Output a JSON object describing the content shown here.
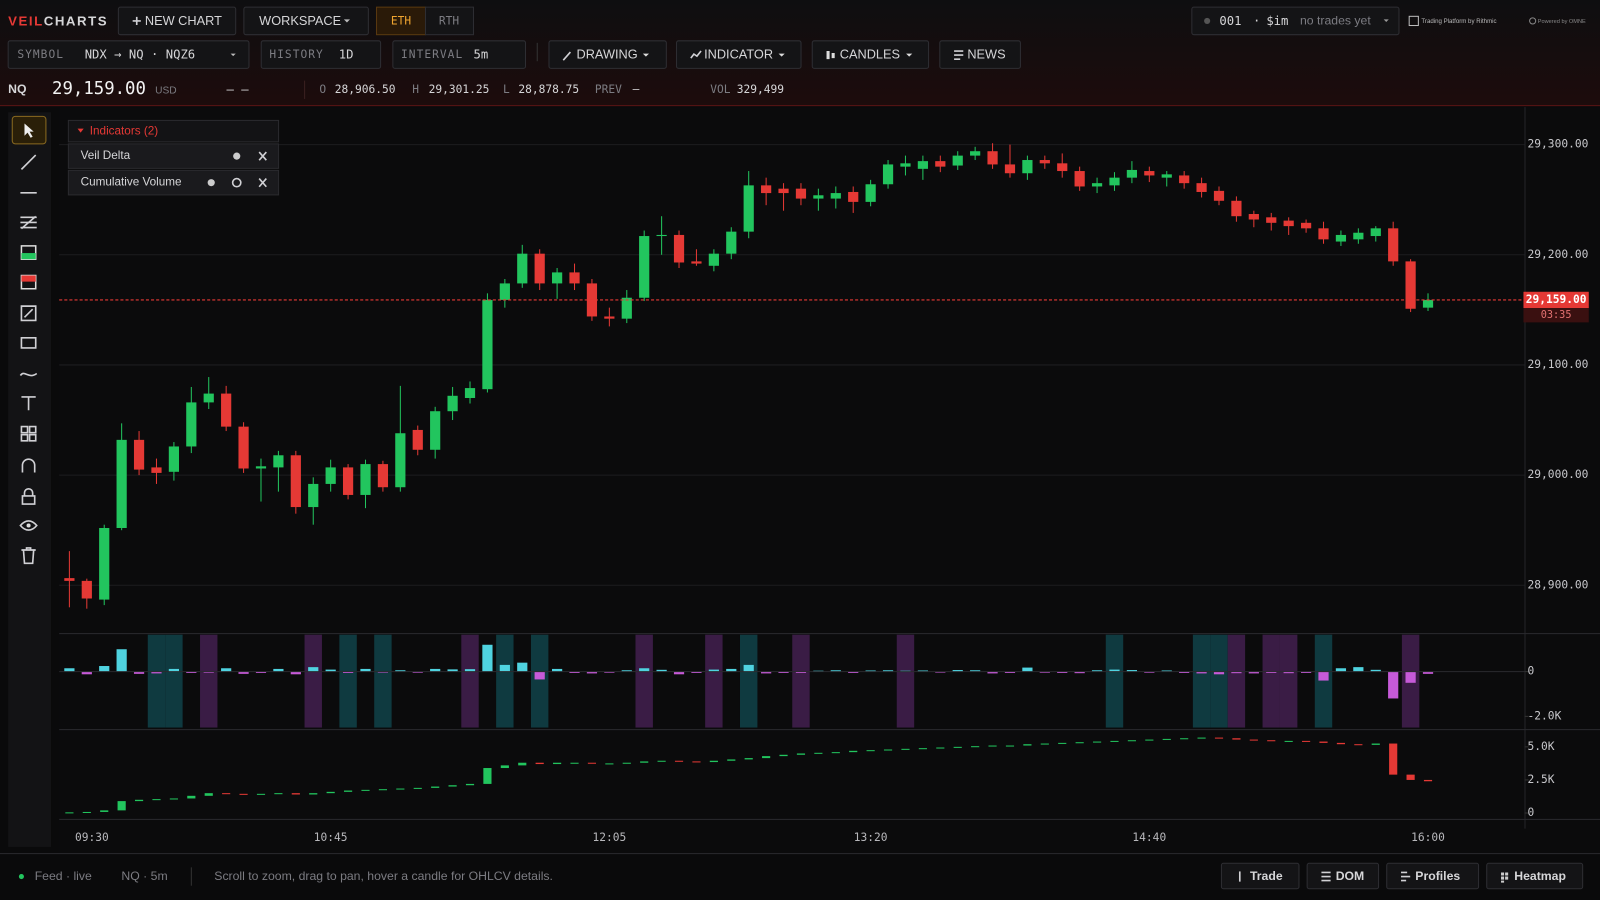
{
  "header": {
    "brand_accent": "VEIL",
    "brand": "CHARTS",
    "new_chart": "NEW CHART",
    "workspace": "WORKSPACE",
    "sessions": [
      "ETH",
      "RTH"
    ],
    "account": {
      "id": "001",
      "separator": "·",
      "mode": "$im",
      "status": "no trades yet"
    },
    "partner": "Trading Platform by Rithmic",
    "powered": "Powered by OMNE"
  },
  "toolbar": {
    "symbol_label": "SYMBOL",
    "symbol": "NDX → NQ · NQZ6",
    "history_label": "HISTORY",
    "history": "1D",
    "interval_label": "INTERVAL",
    "interval": "5m",
    "buttons": [
      "DRAWING",
      "INDICATOR",
      "CANDLES",
      "NEWS"
    ]
  },
  "quote": {
    "symbol": "NQ",
    "currency": "USD",
    "change": "– –",
    "open_label": "O",
    "open": "28,906.50",
    "high_label": "H",
    "high": "29,301.25",
    "low_label": "L",
    "low": "28,878.75",
    "prev_label": "PREV",
    "prev": "—",
    "vol_label": "VOL",
    "vol": "329,499"
  },
  "indicators_panel": {
    "title": "Indicators (2)"
  },
  "footer": {
    "feed": "Feed · live",
    "stream": "NQ · 5m",
    "hint": "Scroll to zoom, drag to pan, hover a candle for OHLCV details.",
    "buttons": [
      "Trade",
      "DOM",
      "Profiles",
      "Heatmap"
    ]
  },
  "chart_data": [
    {
      "type": "candlestick",
      "grid": true,
      "up_color": "#22c55e",
      "down_color": "#e53935",
      "categories": [
        "09:30",
        null,
        null,
        null,
        null,
        null,
        null,
        null,
        null,
        null,
        null,
        null,
        null,
        null,
        null,
        "10:45",
        null,
        null,
        null,
        null,
        null,
        null,
        null,
        null,
        null,
        null,
        null,
        null,
        null,
        null,
        null,
        "12:05",
        null,
        null,
        null,
        null,
        null,
        null,
        null,
        null,
        null,
        null,
        null,
        null,
        null,
        null,
        "13:20",
        null,
        null,
        null,
        null,
        null,
        null,
        null,
        null,
        null,
        null,
        null,
        null,
        null,
        null,
        null,
        "14:40",
        null,
        null,
        null,
        null,
        null,
        null,
        null,
        null,
        null,
        null,
        null,
        null,
        null,
        null,
        null,
        "16:00"
      ],
      "open": [
        28906.5,
        28904,
        28887,
        28952,
        29032,
        29007,
        29003,
        29026,
        29066,
        29074,
        29044,
        29006,
        29007,
        29018,
        28971,
        28992,
        29007,
        28982,
        29010,
        28989,
        29041,
        29023,
        29058,
        29070,
        29078,
        29159,
        29174,
        29201,
        29174,
        29184,
        29174,
        29144,
        29142,
        29161,
        29217,
        29218,
        29194,
        29190,
        29201,
        29221,
        29263,
        29260,
        29260,
        29251,
        29251,
        29257,
        29248,
        29264,
        29280,
        29278,
        29285,
        29281,
        29290,
        29294,
        29282,
        29274,
        29286,
        29283,
        29276,
        29262,
        29263,
        29270,
        29276,
        29270,
        29272,
        29265,
        29258,
        29249,
        29237,
        29234,
        29231,
        29229,
        29224,
        29212,
        29214,
        29217,
        29224,
        29194,
        29152
      ],
      "high": [
        28931,
        28906,
        28955,
        29047,
        29040,
        29015,
        29030,
        29080,
        29089,
        29081,
        29048,
        29015,
        29022,
        29022,
        28998,
        29014,
        29010,
        29014,
        29013,
        29081,
        29045,
        29062,
        29080,
        29085,
        29165,
        29178,
        29209,
        29205,
        29188,
        29192,
        29178,
        29152,
        29168,
        29222,
        29235,
        29222,
        29205,
        29205,
        29225,
        29276,
        29270,
        29265,
        29265,
        29260,
        29262,
        29262,
        29268,
        29286,
        29290,
        29290,
        29290,
        29294,
        29298,
        29301.25,
        29300,
        29290,
        29290,
        29292,
        29280,
        29270,
        29275,
        29285,
        29280,
        29276,
        29276,
        29270,
        29262,
        29253,
        29240,
        29238,
        29234,
        29232,
        29230,
        29222,
        29224,
        29226,
        29230,
        29196,
        29165
      ],
      "low": [
        28880,
        28878.75,
        28882,
        28950,
        29000,
        28992,
        28995,
        29020,
        29060,
        29040,
        29002,
        28976,
        28985,
        28965,
        28955,
        28985,
        28978,
        28970,
        28985,
        28985,
        29018,
        29015,
        29050,
        29065,
        29075,
        29152,
        29170,
        29168,
        29160,
        29168,
        29140,
        29135,
        29138,
        29158,
        29200,
        29188,
        29190,
        29185,
        29196,
        29215,
        29245,
        29240,
        29245,
        29240,
        29242,
        29238,
        29244,
        29260,
        29272,
        29268,
        29275,
        29277,
        29286,
        29278,
        29270,
        29268,
        29278,
        29270,
        29258,
        29256,
        29258,
        29265,
        29266,
        29262,
        29260,
        29252,
        29245,
        29230,
        29225,
        29222,
        29218,
        29220,
        29210,
        29208,
        29210,
        29212,
        29190,
        29148,
        29149
      ],
      "close": [
        28904,
        28888,
        28952,
        29032,
        29005,
        29002,
        29026,
        29066,
        29074,
        29044,
        29006,
        29008,
        29018,
        28971,
        28992,
        29007,
        28982,
        29010,
        28989,
        29038,
        29023,
        29058,
        29072,
        29079,
        29159,
        29174,
        29201,
        29174,
        29184,
        29174,
        29144,
        29142,
        29161,
        29217,
        29218,
        29193,
        29192,
        29201,
        29221,
        29263,
        29256,
        29256,
        29251,
        29254,
        29256,
        29248,
        29264,
        29282,
        29283,
        29285,
        29280,
        29290,
        29294,
        29282,
        29274,
        29286,
        29283,
        29276,
        29262,
        29265,
        29270,
        29277,
        29272,
        29273,
        29265,
        29257,
        29249,
        29235,
        29232,
        29229,
        29226,
        29224,
        29214,
        29218,
        29220,
        29224,
        29194,
        29151,
        29159
      ],
      "ylim": [
        28857,
        29334
      ],
      "yticks": [
        {
          "value": 28900,
          "label": "28,900.00"
        },
        {
          "value": 29000,
          "label": "29,000.00"
        },
        {
          "value": 29100,
          "label": "29,100.00"
        },
        {
          "value": 29200,
          "label": "29,200.00"
        },
        {
          "value": 29300,
          "label": "29,300.00"
        }
      ],
      "last": {
        "value": 29159,
        "label": "29,159.00"
      },
      "countdown": "03:35",
      "last_color": "#e53935"
    },
    {
      "type": "bar",
      "title": "Veil Delta",
      "up_color": "#4fd3e0",
      "down_color": "#c65ad8",
      "values": [
        150,
        -120,
        250,
        1000,
        -100,
        -80,
        120,
        -60,
        -50,
        150,
        -100,
        -60,
        120,
        -120,
        200,
        90,
        -60,
        120,
        -40,
        60,
        -50,
        120,
        100,
        110,
        1200,
        300,
        400,
        -350,
        120,
        -60,
        -80,
        -50,
        60,
        150,
        80,
        -120,
        -60,
        90,
        120,
        300,
        -80,
        -60,
        -60,
        40,
        60,
        -60,
        50,
        60,
        40,
        50,
        -40,
        70,
        60,
        -80,
        -60,
        180,
        -50,
        -60,
        -70,
        60,
        90,
        70,
        -50,
        50,
        -60,
        -80,
        -120,
        -70,
        -80,
        -60,
        -70,
        -60,
        -400,
        150,
        200,
        80,
        -1200,
        -500,
        -100
      ],
      "band_colors": [
        null,
        null,
        null,
        null,
        null,
        "#0f3a40",
        "#0f3a40",
        null,
        "#3a1c45",
        null,
        null,
        null,
        null,
        null,
        "#3a1c45",
        null,
        "#0f3a40",
        null,
        "#0f3a40",
        null,
        null,
        null,
        null,
        "#3a1c45",
        null,
        "#0f3a40",
        null,
        "#0f3a40",
        null,
        null,
        null,
        null,
        null,
        "#3a1c45",
        null,
        null,
        null,
        "#3a1c45",
        null,
        "#0f3a40",
        null,
        null,
        "#3a1c45",
        null,
        null,
        null,
        null,
        null,
        "#3a1c45",
        null,
        null,
        null,
        null,
        null,
        null,
        null,
        null,
        null,
        null,
        null,
        "#0f3a40",
        null,
        null,
        null,
        null,
        "#0f3a40",
        "#0f3a40",
        "#3a1c45",
        null,
        "#3a1c45",
        "#3a1c45",
        null,
        "#0f3a40",
        null,
        null,
        null,
        null,
        "#3a1c45",
        null
      ],
      "ylim": [
        -2500,
        1650
      ],
      "yticks": [
        0,
        {
          "value": -2000,
          "label": "-2.0K"
        }
      ]
    },
    {
      "type": "candlestick",
      "title": "Cumulative Volume",
      "up_color": "#22c55e",
      "down_color": "#e53935",
      "close": [
        50,
        80,
        200,
        900,
        1000,
        1050,
        1100,
        1300,
        1500,
        1450,
        1400,
        1450,
        1500,
        1400,
        1500,
        1600,
        1700,
        1750,
        1800,
        1850,
        1900,
        2000,
        2100,
        2200,
        3400,
        3600,
        3800,
        3700,
        3800,
        3800,
        3750,
        3750,
        3800,
        3900,
        3950,
        3900,
        3850,
        3950,
        4050,
        4150,
        4300,
        4400,
        4500,
        4550,
        4600,
        4700,
        4750,
        4800,
        4850,
        4900,
        4950,
        5000,
        5050,
        5100,
        5100,
        5200,
        5250,
        5300,
        5350,
        5400,
        5450,
        5500,
        5550,
        5600,
        5650,
        5700,
        5650,
        5550,
        5500,
        5450,
        5450,
        5400,
        5300,
        5200,
        5150,
        5250,
        2900,
        2500,
        2400
      ],
      "ylim": [
        -250,
        6150
      ],
      "yticks": [
        0,
        {
          "value": 2500,
          "label": "2.5K"
        },
        {
          "value": 5000,
          "label": "5.0K"
        }
      ]
    }
  ]
}
